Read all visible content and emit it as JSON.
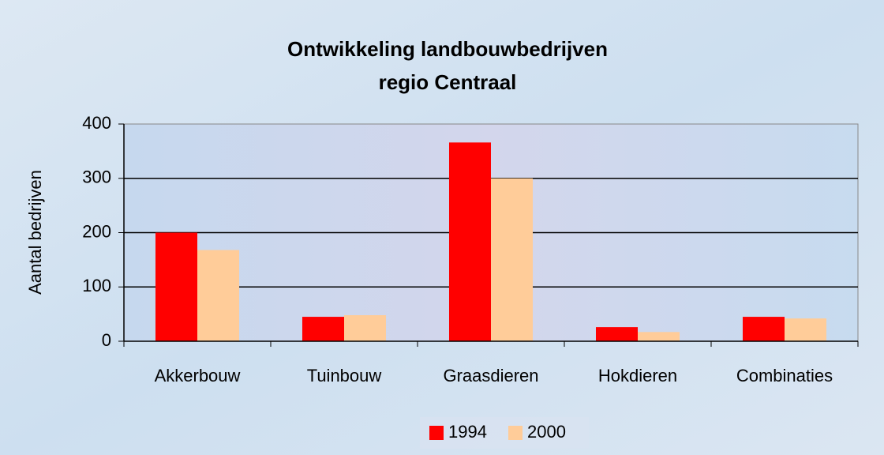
{
  "chart_data": {
    "type": "bar",
    "title": [
      "Ontwikkeling landbouwbedrijven",
      "regio Centraal"
    ],
    "y_label": "Aantal bedrijven",
    "categories": [
      "Akkerbouw",
      "Tuinbouw",
      "Graasdieren",
      "Hokdieren",
      "Combinaties"
    ],
    "series": [
      {
        "name": "1994",
        "color": "#ff0000",
        "values": [
          200,
          45,
          366,
          26,
          45
        ]
      },
      {
        "name": "2000",
        "color": "#ffcc99",
        "values": [
          168,
          48,
          300,
          17,
          42
        ]
      }
    ],
    "ylim": [
      0,
      400
    ],
    "yticks": [
      0,
      100,
      200,
      300,
      400
    ],
    "grid": true,
    "legend": "bottom"
  }
}
